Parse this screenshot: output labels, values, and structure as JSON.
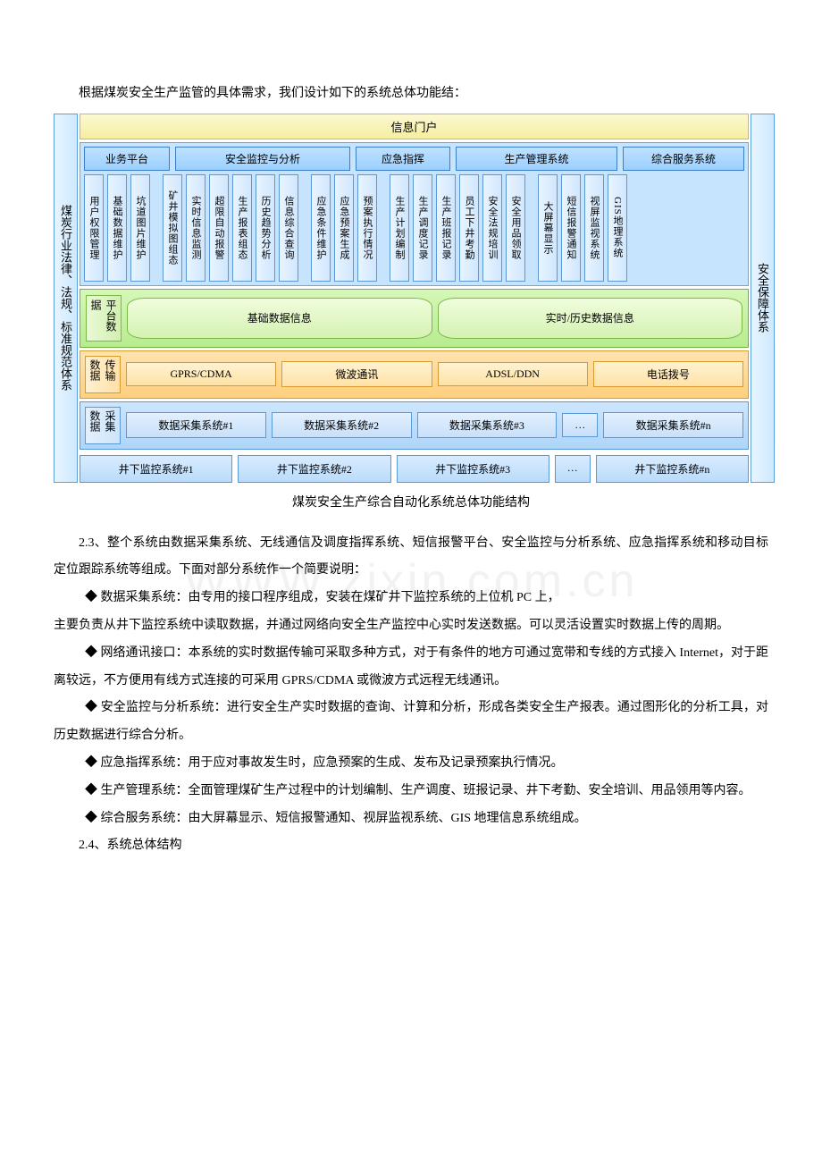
{
  "intro": "根据煤炭安全生产监管的具体需求，我们设计如下的系统总体功能结：",
  "diagram": {
    "left_side": "煤炭行业法律、法规、标准规范体系",
    "right_side": "安全保障体系",
    "top_banner": "信息门户",
    "categories": [
      {
        "label": "业务平台",
        "w": 90
      },
      {
        "label": "安全监控与分析",
        "w": 190
      },
      {
        "label": "应急指挥",
        "w": 100
      },
      {
        "label": "生产管理系统",
        "w": 175
      },
      {
        "label": "综合服务系统",
        "w": 130
      }
    ],
    "vert_groups": [
      [
        "用户权限管理",
        "基础数据维护",
        "坑道图片维护"
      ],
      [
        "矿井模拟图组态",
        "实时信息监测",
        "超限自动报警",
        "生产报表组态",
        "历史趋势分析",
        "信息综合查询"
      ],
      [
        "应急条件维护",
        "应急预案生成",
        "预案执行情况"
      ],
      [
        "生产计划编制",
        "生产调度记录",
        "生产班报记录",
        "员工下井考勤",
        "安全法规培训",
        "安全用品领取"
      ],
      [
        "大屏幕显示",
        "短信报警通知",
        "视屏监视系统",
        "GIS地理系统"
      ]
    ],
    "platform": {
      "label": "平台数据",
      "left": "基础数据信息",
      "right": "实时/历史数据信息"
    },
    "transport": {
      "label": "传输数据",
      "cells": [
        "GPRS/CDMA",
        "微波通讯",
        "ADSL/DDN",
        "电话拨号"
      ]
    },
    "collect": {
      "label": "采集数据",
      "cells": [
        "数据采集系统#1",
        "数据采集系统#2",
        "数据采集系统#3",
        "…",
        "数据采集系统#n"
      ]
    },
    "bottom": [
      "井下监控系统#1",
      "井下监控系统#2",
      "井下监控系统#3",
      "…",
      "井下监控系统#n"
    ]
  },
  "caption": "煤炭安全生产综合自动化系统总体功能结构",
  "p23": "2.3、整个系统由数据采集系统、无线通信及调度指挥系统、短信报警平台、安全监控与分析系统、应急指挥系统和移动目标定位跟踪系统等组成。下面对部分系统作一个简要说明：",
  "bullet1a": "◆ 数据采集系统：由专用的接口程序组成，安装在煤矿井下监控系统的上位机 PC 上，",
  "bullet1b": "主要负责从井下监控系统中读取数据，并通过网络向安全生产监控中心实时发送数据。可以灵活设置实时数据上传的周期。",
  "bullet2": "◆ 网络通讯接口：本系统的实时数据传输可采取多种方式，对于有条件的地方可通过宽带和专线的方式接入 Internet，对于距离较远，不方便用有线方式连接的可采用 GPRS/CDMA 或微波方式远程无线通讯。",
  "bullet3": "◆  安全监控与分析系统：进行安全生产实时数据的查询、计算和分析，形成各类安全生产报表。通过图形化的分析工具，对历史数据进行综合分析。",
  "bullet4": "◆ 应急指挥系统：用于应对事故发生时，应急预案的生成、发布及记录预案执行情况。",
  "bullet5": "◆ 生产管理系统：全面管理煤矿生产过程中的计划编制、生产调度、班报记录、井下考勤、安全培训、用品领用等内容。",
  "bullet6": "◆ 综合服务系统：由大屏幕显示、短信报警通知、视屏监视系统、GIS 地理信息系统组成。",
  "p24": "2.4、系统总体结构",
  "watermark": "WWW.zixin.com.cn"
}
